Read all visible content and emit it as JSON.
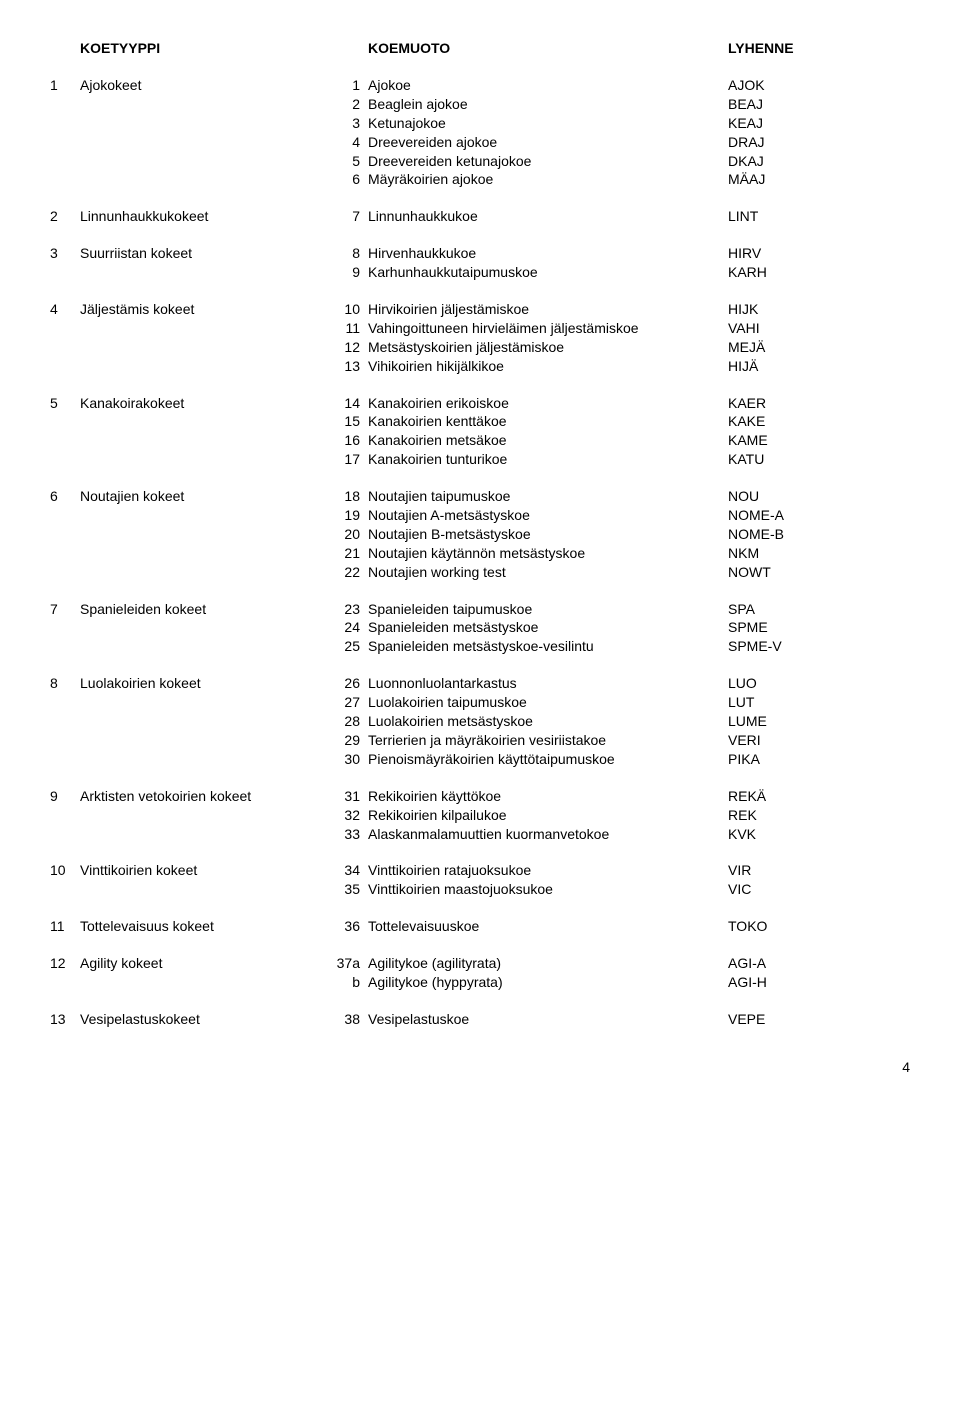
{
  "headers": {
    "type": "KOETYYPPI",
    "form": "KOEMUOTO",
    "abbr": "LYHENNE"
  },
  "groups": [
    {
      "num": "1",
      "type": "Ajokokeet",
      "rows": [
        {
          "n": "1",
          "form": "Ajokoe",
          "abbr": "AJOK"
        },
        {
          "n": "2",
          "form": "Beaglein ajokoe",
          "abbr": "BEAJ"
        },
        {
          "n": "3",
          "form": "Ketunajokoe",
          "abbr": "KEAJ"
        },
        {
          "n": "4",
          "form": "Dreevereiden ajokoe",
          "abbr": "DRAJ"
        },
        {
          "n": "5",
          "form": "Dreevereiden ketunajokoe",
          "abbr": "DKAJ"
        },
        {
          "n": "6",
          "form": "Mäyräkoirien ajokoe",
          "abbr": "MÄAJ"
        }
      ]
    },
    {
      "num": "2",
      "type": "Linnunhaukkukokeet",
      "rows": [
        {
          "n": "7",
          "form": "Linnunhaukkukoe",
          "abbr": "LINT"
        }
      ]
    },
    {
      "num": "3",
      "type": "Suurriistan kokeet",
      "rows": [
        {
          "n": "8",
          "form": "Hirvenhaukkukoe",
          "abbr": "HIRV"
        },
        {
          "n": "9",
          "form": "Karhunhaukkutaipumuskoe",
          "abbr": "KARH"
        }
      ]
    },
    {
      "num": "4",
      "type": "Jäljestämis kokeet",
      "rows": [
        {
          "n": "10",
          "form": "Hirvikoirien jäljestämiskoe",
          "abbr": "HIJK"
        },
        {
          "n": "11",
          "form": "Vahingoittuneen hirvieläimen jäljestämiskoe",
          "abbr": "VAHI"
        },
        {
          "n": "12",
          "form": "Metsästyskoirien jäljestämiskoe",
          "abbr": "MEJÄ"
        },
        {
          "n": "13",
          "form": "Vihikoirien hikijälkikoe",
          "abbr": "HIJÄ"
        }
      ]
    },
    {
      "num": "5",
      "type": "Kanakoirakokeet",
      "rows": [
        {
          "n": "14",
          "form": "Kanakoirien erikoiskoe",
          "abbr": "KAER"
        },
        {
          "n": "15",
          "form": "Kanakoirien kenttäkoe",
          "abbr": "KAKE"
        },
        {
          "n": "16",
          "form": "Kanakoirien metsäkoe",
          "abbr": "KAME"
        },
        {
          "n": "17",
          "form": "Kanakoirien tunturikoe",
          "abbr": "KATU"
        }
      ]
    },
    {
      "num": "6",
      "type": "Noutajien kokeet",
      "rows": [
        {
          "n": "18",
          "form": "Noutajien taipumuskoe",
          "abbr": "NOU"
        },
        {
          "n": "19",
          "form": "Noutajien A-metsästyskoe",
          "abbr": "NOME-A"
        },
        {
          "n": "20",
          "form": "Noutajien B-metsästyskoe",
          "abbr": "NOME-B"
        },
        {
          "n": "21",
          "form": "Noutajien käytännön metsästyskoe",
          "abbr": "NKM"
        },
        {
          "n": "22",
          "form": "Noutajien working test",
          "abbr": "NOWT"
        }
      ]
    },
    {
      "num": "7",
      "type": "Spanieleiden kokeet",
      "rows": [
        {
          "n": "23",
          "form": "Spanieleiden taipumuskoe",
          "abbr": "SPA"
        },
        {
          "n": "24",
          "form": "Spanieleiden metsästyskoe",
          "abbr": "SPME"
        },
        {
          "n": "25",
          "form": "Spanieleiden metsästyskoe-vesilintu",
          "abbr": "SPME-V"
        }
      ]
    },
    {
      "num": "8",
      "type": "Luolakoirien kokeet",
      "rows": [
        {
          "n": "26",
          "form": "Luonnonluolantarkastus",
          "abbr": "LUO"
        },
        {
          "n": "27",
          "form": "Luolakoirien taipumuskoe",
          "abbr": "LUT"
        },
        {
          "n": "28",
          "form": "Luolakoirien metsästyskoe",
          "abbr": "LUME"
        },
        {
          "n": "29",
          "form": "Terrierien ja mäyräkoirien vesiriistakoe",
          "abbr": "VERI"
        },
        {
          "n": "30",
          "form": "Pienoismäyräkoirien käyttötaipumuskoe",
          "abbr": "PIKA"
        }
      ]
    },
    {
      "num": "9",
      "type": "Arktisten vetokoirien kokeet",
      "rows": [
        {
          "n": "31",
          "form": "Rekikoirien käyttökoe",
          "abbr": "REKÄ"
        },
        {
          "n": "32",
          "form": "Rekikoirien kilpailukoe",
          "abbr": "REK"
        },
        {
          "n": "33",
          "form": "Alaskanmalamuuttien kuormanvetokoe",
          "abbr": "KVK"
        }
      ]
    },
    {
      "num": "10",
      "type": "Vinttikoirien kokeet",
      "rows": [
        {
          "n": "34",
          "form": "Vinttikoirien ratajuoksukoe",
          "abbr": "VIR"
        },
        {
          "n": "35",
          "form": "Vinttikoirien maastojuoksukoe",
          "abbr": "VIC"
        }
      ]
    },
    {
      "num": "11",
      "type": "Tottelevaisuus kokeet",
      "rows": [
        {
          "n": "36",
          "form": "Tottelevaisuuskoe",
          "abbr": "TOKO"
        }
      ]
    },
    {
      "num": "12",
      "type": "Agility kokeet",
      "rows": [
        {
          "n": "37a",
          "form": "Agilitykoe (agilityrata)",
          "abbr": "AGI-A"
        },
        {
          "n": "b",
          "form": "Agilitykoe (hyppyrata)",
          "abbr": "AGI-H"
        }
      ]
    },
    {
      "num": "13",
      "type": "Vesipelastuskokeet",
      "rows": [
        {
          "n": "38",
          "form": "Vesipelastuskoe",
          "abbr": "VEPE"
        }
      ]
    }
  ],
  "page_number": "4"
}
